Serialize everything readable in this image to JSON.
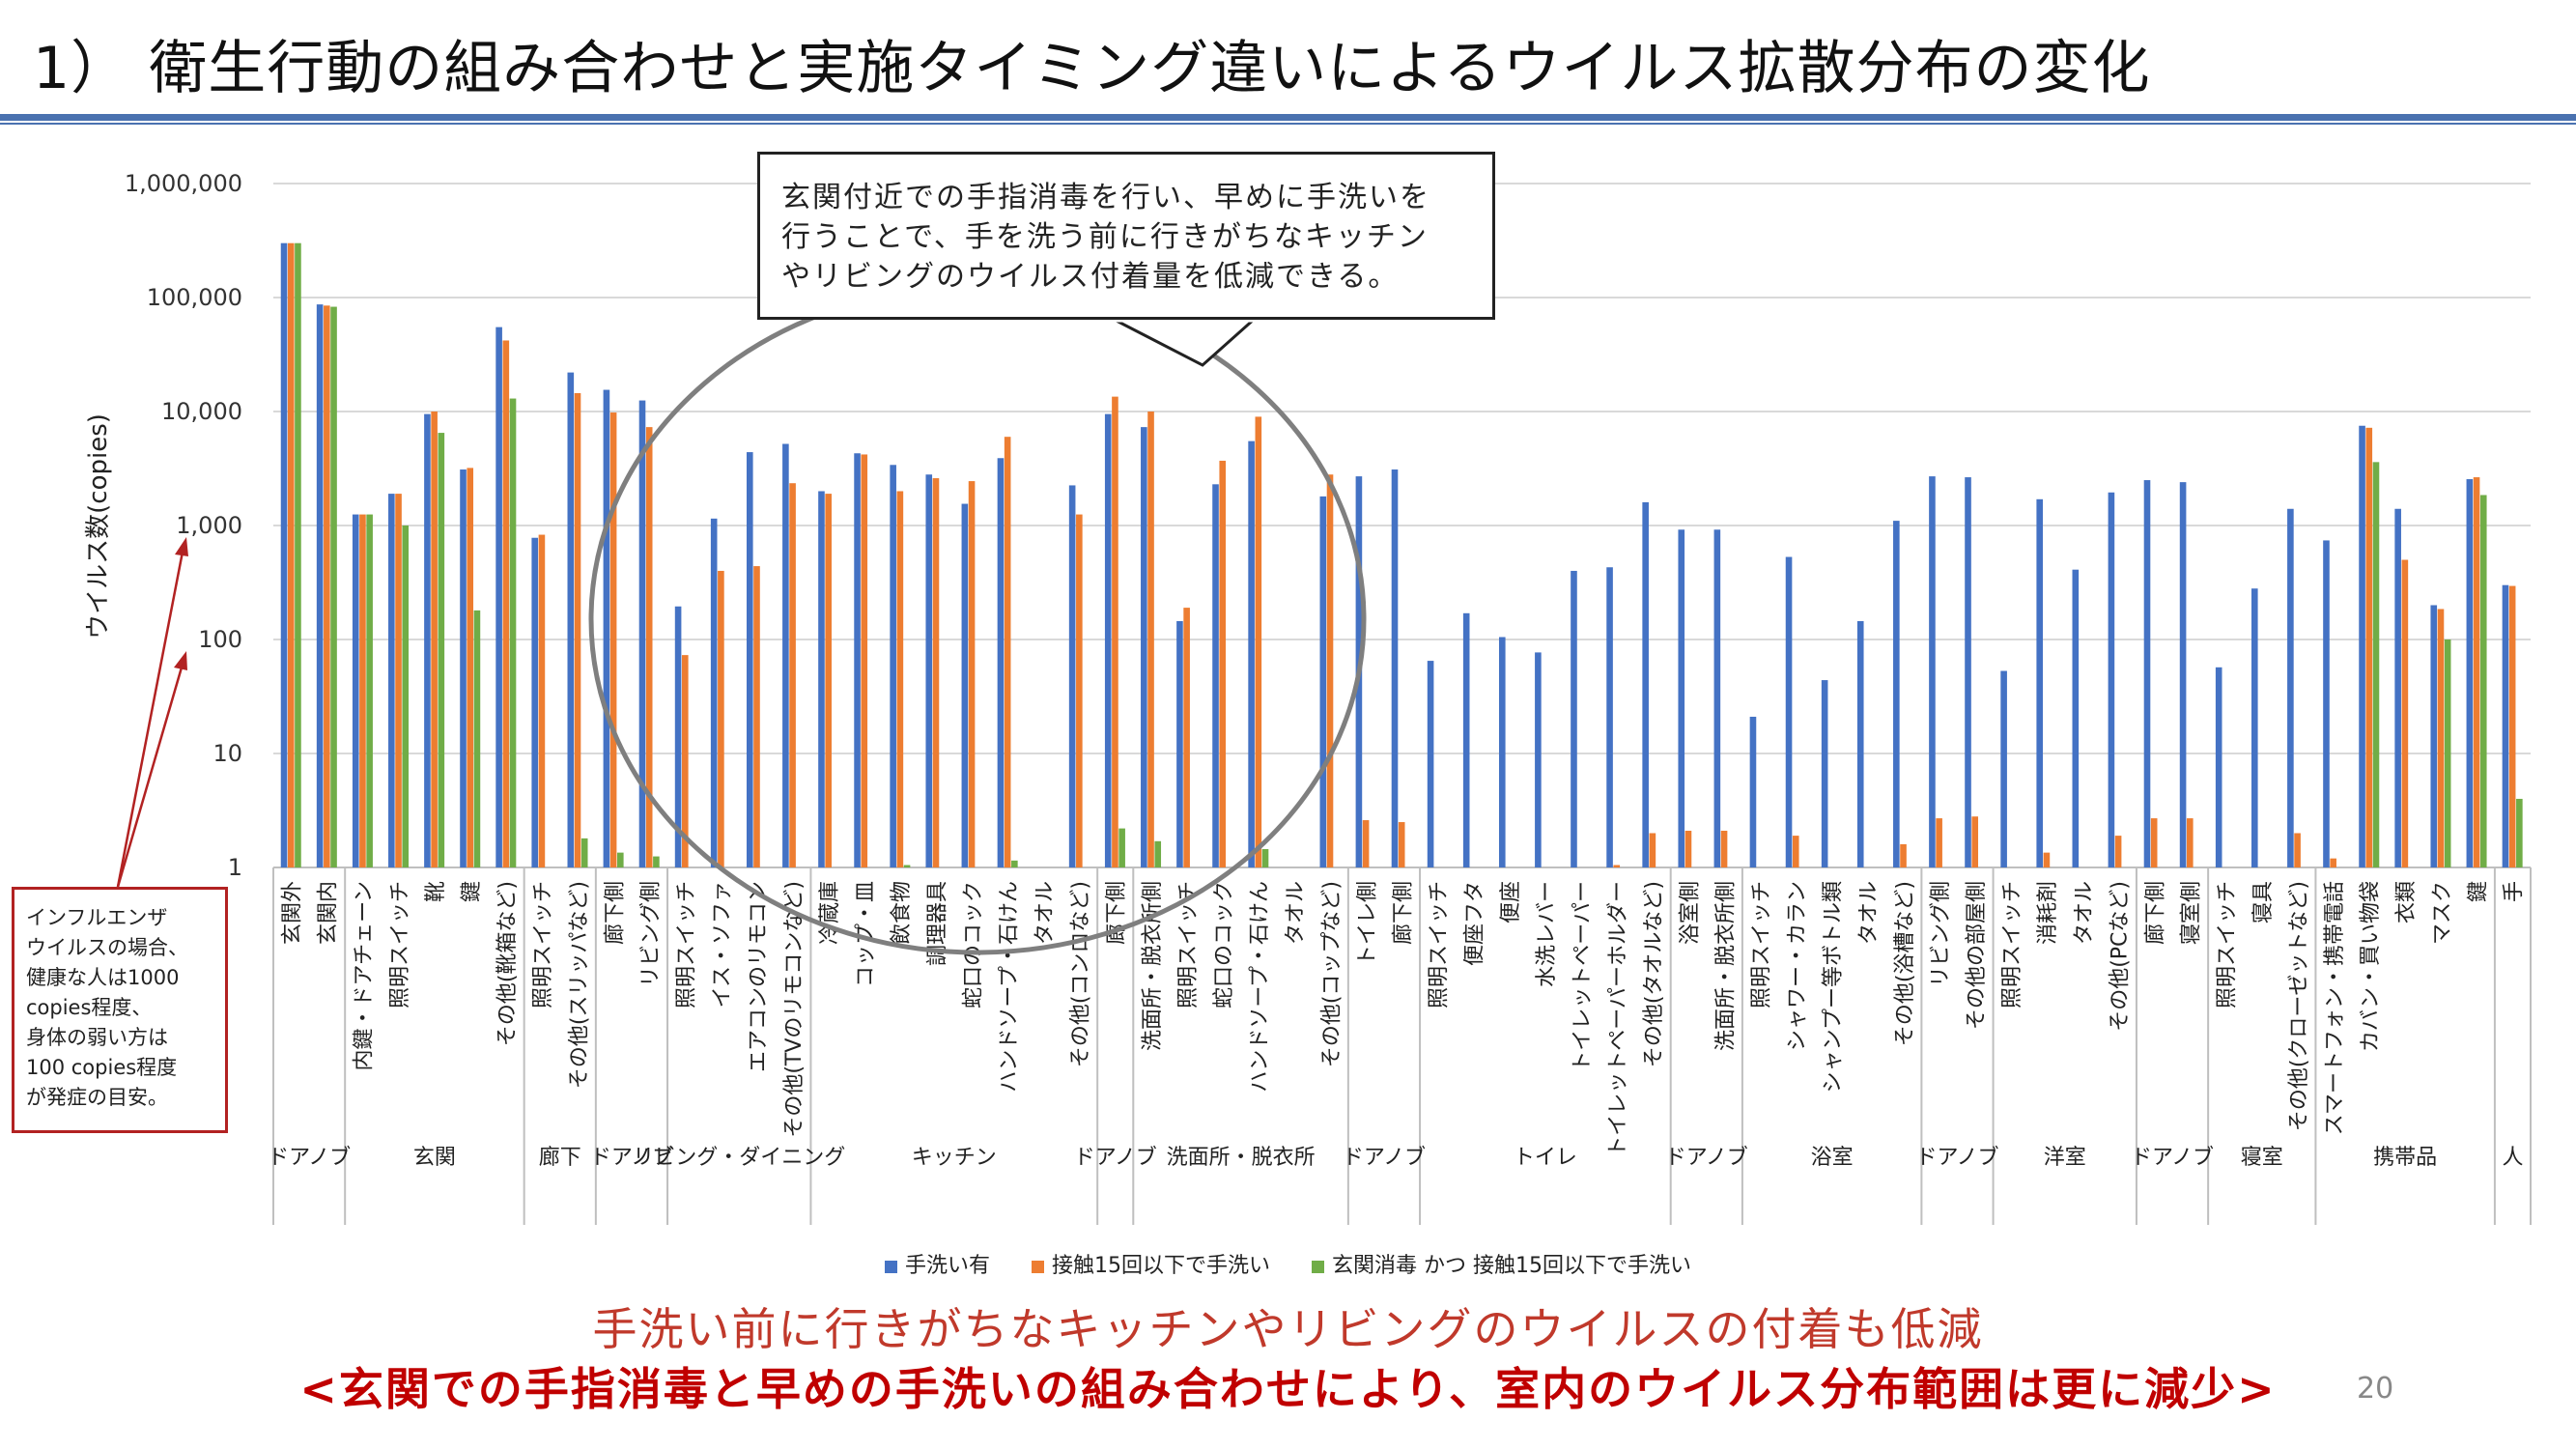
{
  "slide": {
    "title": "1） 衛生行動の組み合わせと実施タイミング違いによるウイルス拡散分布の変化",
    "callout": "玄関付近での手指消毒を行い、早めに手洗いを\n行うことで、手を洗う前に行きがちなキッチン\nやリビングのウイルス付着量を低減できる。",
    "note": "インフルエンザ\nウイルスの場合、\n健康な人は1000\ncopies程度、\n身体の弱い方は\n100 copies程度\nが発症の目安。",
    "footer_line_1": "手洗い前に行きがちなキッチンやリビングのウイルスの付着も低減",
    "footer_line_2": "<玄関での手指消毒と早めの手洗いの組み合わせにより、室内のウイルス分布範囲は更に減少>",
    "page_number": "20"
  },
  "colors": {
    "series_blue": "#4472c4",
    "series_orange": "#ed7d31",
    "series_green": "#70ad47",
    "title_rule": "#4a72b0",
    "accent_red": "#c00000"
  },
  "chart_data": {
    "type": "bar",
    "ylabel": "ウイルス数(copies)",
    "yscale": "log",
    "ylim": [
      1,
      1000000
    ],
    "yticks": [
      "1",
      "10",
      "100",
      "1,000",
      "10,000",
      "100,000",
      "1,000,000"
    ],
    "grid": true,
    "legend_position": "bottom",
    "series_names": [
      "手洗い有",
      "接触15回以下で手洗い",
      "玄関消毒 かつ 接触15回以下で手洗い"
    ],
    "groups": [
      {
        "label": "ドアノブ",
        "categories": [
          {
            "name": "玄関外",
            "values": [
              300000,
              300000,
              300000
            ]
          },
          {
            "name": "玄関内",
            "values": [
              87000,
              85000,
              83000
            ]
          }
        ]
      },
      {
        "label": "玄関",
        "categories": [
          {
            "name": "内鍵・ドアチェーン",
            "values": [
              1250,
              1250,
              1250
            ]
          },
          {
            "name": "照明スイッチ",
            "values": [
              1900,
              1900,
              1000
            ]
          },
          {
            "name": "靴",
            "values": [
              9500,
              10000,
              6500
            ]
          },
          {
            "name": "鍵",
            "values": [
              3100,
              3200,
              180
            ]
          },
          {
            "name": "その他(靴箱など)",
            "values": [
              55000,
              42000,
              13000
            ]
          }
        ]
      },
      {
        "label": "廊下",
        "categories": [
          {
            "name": "照明スイッチ",
            "values": [
              780,
              830,
              null
            ]
          },
          {
            "name": "その他(スリッパなど)",
            "values": [
              22000,
              14500,
              1.8
            ]
          }
        ]
      },
      {
        "label": "ドアノブ",
        "categories": [
          {
            "name": "廊下側",
            "values": [
              15500,
              9800,
              1.35
            ]
          },
          {
            "name": "リビング側",
            "values": [
              12500,
              7300,
              1.25
            ]
          }
        ]
      },
      {
        "label": "リビング・ダイニング",
        "categories": [
          {
            "name": "照明スイッチ",
            "values": [
              195,
              73,
              null
            ]
          },
          {
            "name": "イス・ソファ",
            "values": [
              1150,
              400,
              null
            ]
          },
          {
            "name": "エアコンのリモコン",
            "values": [
              4400,
              440,
              null
            ]
          },
          {
            "name": "その他(TVのリモコンなど)",
            "values": [
              5200,
              2350,
              null
            ]
          }
        ]
      },
      {
        "label": "キッチン",
        "categories": [
          {
            "name": "冷蔵庫",
            "values": [
              2000,
              1900,
              null
            ]
          },
          {
            "name": "コップ・皿",
            "values": [
              4300,
              4200,
              null
            ]
          },
          {
            "name": "飲食物",
            "values": [
              3400,
              2000,
              1.05
            ]
          },
          {
            "name": "調理器具",
            "values": [
              2800,
              2600,
              null
            ]
          },
          {
            "name": "蛇口のコック",
            "values": [
              1550,
              2450,
              null
            ]
          },
          {
            "name": "ハンドソープ・石けん",
            "values": [
              3900,
              6000,
              1.15
            ]
          },
          {
            "name": "タオル",
            "values": [
              null,
              null,
              null
            ]
          },
          {
            "name": "その他(コンロなど)",
            "values": [
              2250,
              1250,
              null
            ]
          }
        ]
      },
      {
        "label": "ドアノブ",
        "categories": [
          {
            "name": "廊下側",
            "values": [
              9500,
              13500,
              2.2
            ]
          }
        ]
      },
      {
        "label": "洗面所・脱衣所",
        "categories": [
          {
            "name": "洗面所・脱衣所側",
            "values": [
              7300,
              10000,
              1.7
            ]
          },
          {
            "name": "照明スイッチ",
            "values": [
              145,
              190,
              null
            ]
          },
          {
            "name": "蛇口のコック",
            "values": [
              2300,
              3700,
              null
            ]
          },
          {
            "name": "ハンドソープ・石けん",
            "values": [
              5500,
              9000,
              1.45
            ]
          },
          {
            "name": "タオル",
            "values": [
              null,
              null,
              null
            ]
          },
          {
            "name": "その他(コップなど)",
            "values": [
              1800,
              2800,
              null
            ]
          }
        ]
      },
      {
        "label": "ドアノブ",
        "categories": [
          {
            "name": "トイレ側",
            "values": [
              2700,
              2.6,
              null
            ]
          },
          {
            "name": "廊下側",
            "values": [
              3100,
              2.5,
              null
            ]
          }
        ]
      },
      {
        "label": "トイレ",
        "categories": [
          {
            "name": "照明スイッチ",
            "values": [
              65,
              null,
              null
            ]
          },
          {
            "name": "便座フタ",
            "values": [
              170,
              null,
              null
            ]
          },
          {
            "name": "便座",
            "values": [
              105,
              null,
              null
            ]
          },
          {
            "name": "水洗レバー",
            "values": [
              77,
              null,
              null
            ]
          },
          {
            "name": "トイレットペーパー",
            "values": [
              400,
              null,
              null
            ]
          },
          {
            "name": "トイレットペーパーホルダー",
            "values": [
              430,
              1.05,
              null
            ]
          },
          {
            "name": "その他(タオルなど)",
            "values": [
              1600,
              2.0,
              null
            ]
          }
        ]
      },
      {
        "label": "ドアノブ",
        "categories": [
          {
            "name": "浴室側",
            "values": [
              920,
              2.1,
              null
            ]
          },
          {
            "name": "洗面所・脱衣所側",
            "values": [
              920,
              2.1,
              null
            ]
          }
        ]
      },
      {
        "label": "浴室",
        "categories": [
          {
            "name": "照明スイッチ",
            "values": [
              21,
              null,
              null
            ]
          },
          {
            "name": "シャワー・カラン",
            "values": [
              530,
              1.9,
              null
            ]
          },
          {
            "name": "シャンプー等ボトル類",
            "values": [
              44,
              null,
              null
            ]
          },
          {
            "name": "タオル",
            "values": [
              145,
              null,
              null
            ]
          },
          {
            "name": "その他(浴槽など)",
            "values": [
              1100,
              1.6,
              null
            ]
          }
        ]
      },
      {
        "label": "ドアノブ",
        "categories": [
          {
            "name": "リビング側",
            "values": [
              2700,
              2.7,
              null
            ]
          },
          {
            "name": "その他の部屋側",
            "values": [
              2650,
              2.8,
              null
            ]
          }
        ]
      },
      {
        "label": "洋室",
        "categories": [
          {
            "name": "照明スイッチ",
            "values": [
              53,
              null,
              null
            ]
          },
          {
            "name": "消耗剤",
            "values": [
              1700,
              1.35,
              null
            ]
          },
          {
            "name": "タオル",
            "values": [
              410,
              null,
              null
            ]
          },
          {
            "name": "その他(PCなど)",
            "values": [
              1950,
              1.9,
              null
            ]
          }
        ]
      },
      {
        "label": "ドアノブ",
        "categories": [
          {
            "name": "廊下側",
            "values": [
              2500,
              2.7,
              null
            ]
          },
          {
            "name": "寝室側",
            "values": [
              2400,
              2.7,
              null
            ]
          }
        ]
      },
      {
        "label": "寝室",
        "categories": [
          {
            "name": "照明スイッチ",
            "values": [
              57,
              null,
              null
            ]
          },
          {
            "name": "寝具",
            "values": [
              280,
              null,
              null
            ]
          },
          {
            "name": "その他(クローゼットなど)",
            "values": [
              1400,
              2.0,
              null
            ]
          }
        ]
      },
      {
        "label": "携帯品",
        "categories": [
          {
            "name": "スマートフォン・携帯電話",
            "values": [
              740,
              1.2,
              null
            ]
          },
          {
            "name": "カバン・買い物袋",
            "values": [
              7500,
              7200,
              3600
            ]
          },
          {
            "name": "衣類",
            "values": [
              1400,
              500,
              null
            ]
          },
          {
            "name": "マスク",
            "values": [
              200,
              185,
              100
            ]
          },
          {
            "name": "鍵",
            "values": [
              2550,
              2650,
              1850
            ]
          }
        ]
      },
      {
        "label": "人",
        "categories": [
          {
            "name": "手",
            "values": [
              300,
              295,
              4.0
            ]
          }
        ]
      }
    ]
  }
}
